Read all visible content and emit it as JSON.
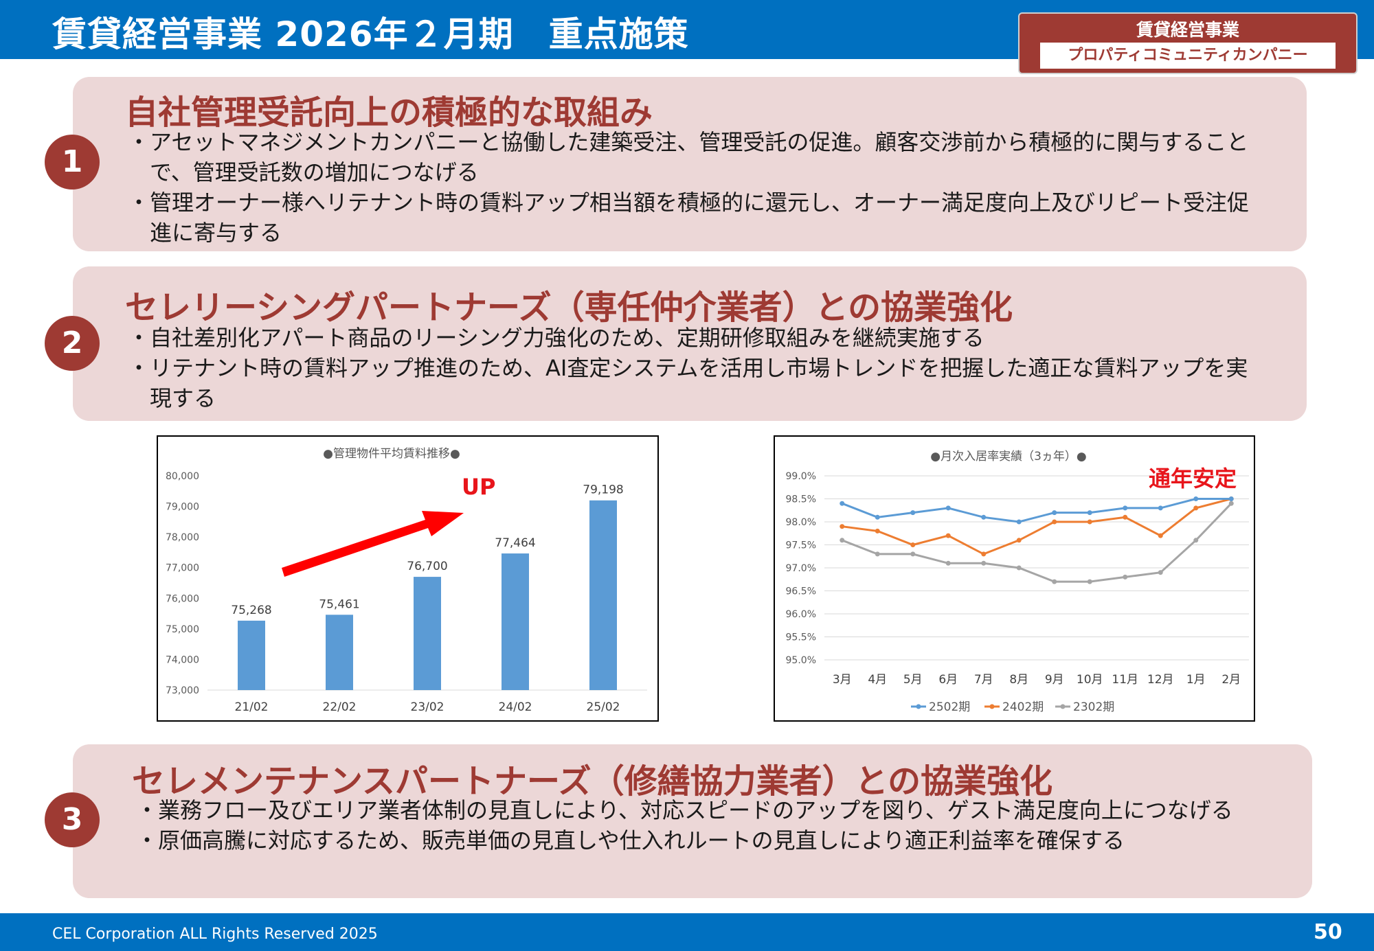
{
  "header": {
    "title": "賃貸経営事業 2026年２月期　重点施策",
    "badge_title": "賃貸経営事業",
    "badge_subtitle": "プロパティコミュニティカンパニー"
  },
  "sections": [
    {
      "number": "1",
      "title": "自社管理受託向上の積極的な取組み",
      "bullets": [
        "アセットマネジメントカンパニーと協働した建築受注、管理受託の促進。顧客交渉前から積極的に関与することで、管理受託数の増加につなげる",
        "管理オーナー様へリテナント時の賃料アップ相当額を積極的に還元し、オーナー満足度向上及びリピート受注促進に寄与する"
      ]
    },
    {
      "number": "2",
      "title": "セレリーシングパートナーズ（専任仲介業者）との協業強化",
      "bullets": [
        "自社差別化アパート商品のリーシング力強化のため、定期研修取組みを継続実施する",
        "リテナント時の賃料アップ推進のため、AI査定システムを活用し市場トレンドを把握した適正な賃料アップを実現する"
      ]
    },
    {
      "number": "3",
      "title": "セレメンテナンスパートナーズ（修繕協力業者）との協業強化",
      "bullets": [
        "業務フロー及びエリア業者体制の見直しにより、対応スピードのアップを図り、ゲスト満足度向上につなげる",
        "原価高騰に対応するため、販売単価の見直しや仕入れルートの見直しにより適正利益率を確保する"
      ]
    }
  ],
  "chart_data": [
    {
      "type": "bar",
      "title": "●管理物件平均賃料推移●",
      "categories": [
        "21/02",
        "22/02",
        "23/02",
        "24/02",
        "25/02"
      ],
      "values": [
        75268,
        75461,
        76700,
        77464,
        79198
      ],
      "data_labels": [
        "75,268",
        "75,461",
        "76,700",
        "77,464",
        "79,198"
      ],
      "ylim": [
        73000,
        80000
      ],
      "y_ticks": [
        "73,000",
        "74,000",
        "75,000",
        "76,000",
        "77,000",
        "78,000",
        "79,000",
        "80,000"
      ],
      "color": "#5b9bd5",
      "annotation": "UP",
      "annotation_color": "#ff0000",
      "grid": false
    },
    {
      "type": "line",
      "title": "●月次入居率実績（3ヵ年）●",
      "categories": [
        "3月",
        "4月",
        "5月",
        "6月",
        "7月",
        "8月",
        "9月",
        "10月",
        "11月",
        "12月",
        "1月",
        "2月"
      ],
      "ylim": [
        95.0,
        99.0
      ],
      "y_ticks": [
        "95.0%",
        "95.5%",
        "96.0%",
        "96.5%",
        "97.0%",
        "97.5%",
        "98.0%",
        "98.5%",
        "99.0%"
      ],
      "series": [
        {
          "name": "2502期",
          "color": "#5b9bd5",
          "values": [
            98.4,
            98.1,
            98.2,
            98.3,
            98.1,
            98.0,
            98.2,
            98.2,
            98.3,
            98.3,
            98.5,
            98.5
          ]
        },
        {
          "name": "2402期",
          "color": "#ed7d31",
          "values": [
            97.9,
            97.8,
            97.5,
            97.7,
            97.3,
            97.6,
            98.0,
            98.0,
            98.1,
            97.7,
            98.3,
            98.5
          ]
        },
        {
          "name": "2302期",
          "color": "#a5a5a5",
          "values": [
            97.6,
            97.3,
            97.3,
            97.1,
            97.1,
            97.0,
            96.7,
            96.7,
            96.8,
            96.9,
            97.6,
            98.4
          ]
        }
      ],
      "legend": "bottom",
      "annotation": "通年安定",
      "annotation_color": "#ff0000",
      "grid": true
    }
  ],
  "footer": {
    "copyright": "CEL Corporation ALL Rights Reserved 2025",
    "page_number": "50"
  }
}
